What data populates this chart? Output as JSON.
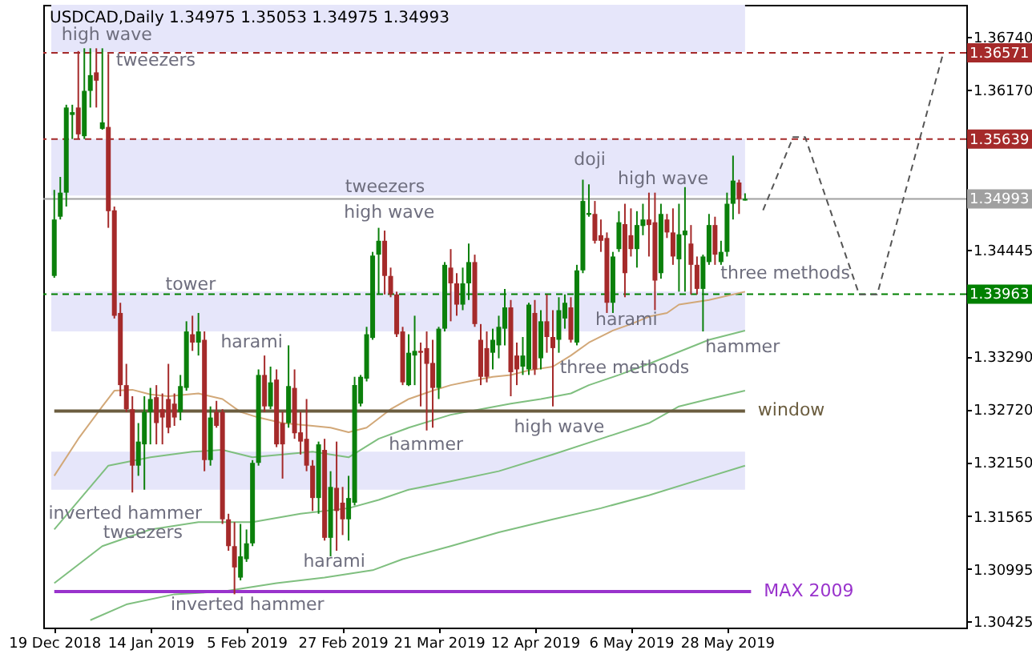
{
  "chart_data": {
    "type": "candlestick",
    "title": "USDCAD,Daily  1.34975 1.35053 1.34975 1.34993",
    "categories": [
      "19 Dec 2018",
      null,
      null,
      null,
      null,
      null,
      null,
      null,
      null,
      null,
      null,
      null,
      null,
      null,
      null,
      null,
      "14 Jan 2019",
      null,
      null,
      null,
      null,
      null,
      null,
      null,
      null,
      null,
      null,
      null,
      null,
      null,
      null,
      null,
      "5 Feb 2019",
      null,
      null,
      null,
      null,
      null,
      null,
      null,
      null,
      null,
      null,
      null,
      null,
      null,
      null,
      null,
      "27 Feb 2019",
      null,
      null,
      null,
      null,
      null,
      null,
      null,
      null,
      null,
      null,
      null,
      null,
      null,
      null,
      null,
      "21 Mar 2019",
      null,
      null,
      null,
      null,
      null,
      null,
      null,
      null,
      null,
      null,
      null,
      null,
      null,
      null,
      null,
      "12 Apr 2019",
      null,
      null,
      null,
      null,
      null,
      null,
      null,
      null,
      null,
      null,
      null,
      null,
      null,
      null,
      null,
      "6 May 2019",
      null,
      null,
      null,
      null,
      null,
      null,
      null,
      null,
      null,
      null,
      null,
      null,
      null,
      null,
      null,
      "28 May 2019",
      null,
      null,
      null,
      null,
      null,
      null,
      null,
      null,
      null,
      null,
      null,
      null,
      null,
      null,
      null,
      null,
      null,
      null,
      null,
      null,
      null,
      null,
      null,
      null,
      null,
      null,
      null,
      null,
      null,
      null,
      null,
      null,
      null,
      null,
      null,
      null,
      null,
      null
    ],
    "colors": [
      "#0b800b",
      "#0b800b",
      "#0b800b",
      "#0b800b",
      "#a52a2a",
      "#0b800b",
      "#0b800b",
      "#a52a2a",
      "#0b800b",
      "#a52a2a",
      "#a52a2a",
      "#a52a2a",
      "#a52a2a",
      "#a52a2a",
      "#0b800b",
      "#0b800b",
      "#0b800b",
      "#a52a2a",
      "#a52a2a",
      "#a52a2a",
      "#a52a2a",
      "#0b800b",
      "#0b800b",
      "#a52a2a",
      "#0b800b",
      "#a52a2a",
      "#0b800b",
      "#a52a2a",
      "#a52a2a",
      "#a52a2a",
      "#a52a2a",
      "#0b800b",
      "#0b800b",
      "#0b800b",
      "#0b800b",
      "#a52a2a",
      "#0b800b",
      "#a52a2a",
      "#a52a2a",
      "#0b800b",
      "#a52a2a",
      "#a52a2a",
      "#a52a2a",
      "#a52a2a",
      "#0b800b",
      "#a52a2a",
      "#0b800b",
      "#a52a2a",
      "#a52a2a",
      "#0b800b",
      "#0b800b",
      "#0b800b",
      "#0b800b",
      "#0b800b",
      "#0b800b",
      "#a52a2a",
      "#a52a2a",
      "#a52a2a",
      "#a52a2a",
      "#0b800b",
      "#0b800b",
      "#a52a2a",
      "#a52a2a",
      "#a52a2a",
      "#0b800b",
      "#0b800b",
      "#a52a2a",
      "#a52a2a",
      "#0b800b",
      "#0b800b",
      "#a52a2a",
      "#a52a2a",
      "#a52a2a",
      "#0b800b",
      "#0b800b",
      "#0b800b",
      "#a52a2a",
      "#a52a2a",
      "#0b800b",
      "#0b800b",
      "#a52a2a",
      "#0b800b",
      "#a52a2a",
      "#a52a2a",
      "#0b800b",
      "#0b800b",
      "#a52a2a",
      "#0b800b",
      "#0b800b",
      "#0b800b",
      "#a52a2a",
      "#a52a2a",
      "#a52a2a",
      "#0b800b",
      "#0b800b",
      "#a52a2a",
      "#a52a2a",
      "#0b800b",
      "#0b800b",
      "#a52a2a",
      "#a52a2a",
      "#0b800b",
      "#a52a2a",
      "#a52a2a",
      "#0b800b",
      "#0b800b",
      "#a52a2a",
      "#a52a2a",
      "#0b800b",
      "#0b800b",
      "#a52a2a",
      "#0b800b",
      "#0b800b",
      "#0b800b",
      "#a52a2a",
      "#0b800b",
      null,
      null,
      null,
      null,
      null,
      null,
      null,
      null,
      null,
      null,
      null,
      null,
      null,
      null,
      null,
      null,
      null,
      null,
      null,
      null,
      null,
      null,
      null,
      null,
      null,
      null,
      null,
      null,
      null,
      null,
      null,
      null,
      null,
      null,
      null
    ],
    "ylim": [
      1.3036,
      1.3709
    ],
    "yticks": [
      {
        "value": 1.3674,
        "label": "1.36740"
      },
      {
        "value": 1.3617,
        "label": "1.36170"
      },
      1.34445,
      {
        "value": 1.3329,
        "label": "1.33290"
      },
      {
        "value": 1.3272,
        "label": "1.32720"
      },
      {
        "value": 1.3215,
        "label": "1.32150"
      },
      1.31565,
      1.30995,
      1.30425
    ],
    "grid": false,
    "ohlc": [
      [
        1.3416,
        1.3509,
        1.3414,
        1.3477
      ],
      [
        1.348,
        1.3523,
        1.3477,
        1.3506
      ],
      [
        1.3506,
        1.3601,
        1.3491,
        1.3598
      ],
      [
        1.359,
        1.3601,
        1.3564,
        1.3593
      ],
      [
        1.3598,
        1.3659,
        1.3564,
        1.3569
      ],
      [
        1.3567,
        1.3662,
        1.3564,
        1.3616
      ],
      [
        1.3616,
        1.3662,
        1.3598,
        1.3633
      ],
      [
        1.3636,
        1.3662,
        1.3598,
        1.3627
      ],
      [
        1.3575,
        1.3662,
        1.3574,
        1.3582
      ],
      [
        1.3577,
        1.3656,
        1.3468,
        1.3486
      ],
      [
        1.3487,
        1.3491,
        1.337,
        1.3373
      ],
      [
        1.3376,
        1.3387,
        1.3286,
        1.3298
      ],
      [
        1.3298,
        1.3321,
        1.3269,
        1.3272
      ],
      [
        1.3272,
        1.3286,
        1.3182,
        1.3211
      ],
      [
        1.3211,
        1.3257,
        1.32,
        1.3237
      ],
      [
        1.3234,
        1.3286,
        1.3185,
        1.3269
      ],
      [
        1.3269,
        1.3295,
        1.3234,
        1.3283
      ],
      [
        1.3285,
        1.3298,
        1.3234,
        1.3257
      ],
      [
        1.3272,
        1.3289,
        1.3234,
        1.3263
      ],
      [
        1.3283,
        1.3321,
        1.3246,
        1.3252
      ],
      [
        1.3278,
        1.3289,
        1.3254,
        1.3263
      ],
      [
        1.3269,
        1.3309,
        1.326,
        1.3297
      ],
      [
        1.3295,
        1.3367,
        1.3292,
        1.3356
      ],
      [
        1.3353,
        1.3373,
        1.3335,
        1.3344
      ],
      [
        1.3344,
        1.3376,
        1.333,
        1.3356
      ],
      [
        1.3347,
        1.3356,
        1.3205,
        1.3217
      ],
      [
        1.3217,
        1.3275,
        1.3211,
        1.3263
      ],
      [
        1.3269,
        1.3281,
        1.3252,
        1.3254
      ],
      [
        1.3269,
        1.3272,
        1.3148,
        1.3153
      ],
      [
        1.3153,
        1.3159,
        1.3119,
        1.3124
      ],
      [
        1.3124,
        1.315,
        1.3072,
        1.3101
      ],
      [
        1.309,
        1.3148,
        1.3087,
        1.3113
      ],
      [
        1.311,
        1.3142,
        1.3107,
        1.3127
      ],
      [
        1.3127,
        1.3217,
        1.3124,
        1.3214
      ],
      [
        1.3214,
        1.3315,
        1.3211,
        1.3309
      ],
      [
        1.3309,
        1.333,
        1.3269,
        1.3275
      ],
      [
        1.3275,
        1.3318,
        1.3272,
        1.3301
      ],
      [
        1.3304,
        1.3315,
        1.3231,
        1.3234
      ],
      [
        1.3257,
        1.3269,
        1.3197,
        1.3234
      ],
      [
        1.3257,
        1.3341,
        1.3252,
        1.3297
      ],
      [
        1.3295,
        1.3315,
        1.324,
        1.3246
      ],
      [
        1.3247,
        1.3269,
        1.3223,
        1.3237
      ],
      [
        1.324,
        1.3283,
        1.3205,
        1.3211
      ],
      [
        1.3211,
        1.3217,
        1.3162,
        1.3176
      ],
      [
        1.3176,
        1.3237,
        1.3159,
        1.3234
      ],
      [
        1.3228,
        1.324,
        1.313,
        1.3133
      ],
      [
        1.3133,
        1.3205,
        1.3113,
        1.3188
      ],
      [
        1.3187,
        1.3237,
        1.3119,
        1.3162
      ],
      [
        1.3171,
        1.3188,
        1.3136,
        1.3153
      ],
      [
        1.3153,
        1.32,
        1.313,
        1.3176
      ],
      [
        1.3171,
        1.3307,
        1.3168,
        1.3298
      ],
      [
        1.3278,
        1.3309,
        1.3275,
        1.3307
      ],
      [
        1.3305,
        1.3361,
        1.3302,
        1.3353
      ],
      [
        1.3349,
        1.3442,
        1.3347,
        1.3438
      ],
      [
        1.3439,
        1.3468,
        1.3396,
        1.3454
      ],
      [
        1.3454,
        1.3465,
        1.3396,
        1.3416
      ],
      [
        1.3416,
        1.3425,
        1.3393,
        1.3396
      ],
      [
        1.3396,
        1.3399,
        1.335,
        1.3353
      ],
      [
        1.3356,
        1.3361,
        1.3298,
        1.3301
      ],
      [
        1.3298,
        1.3353,
        1.3297,
        1.3333
      ],
      [
        1.333,
        1.3373,
        1.3298,
        1.3335
      ],
      [
        1.3335,
        1.3344,
        1.3275,
        1.3333
      ],
      [
        1.3338,
        1.3356,
        1.3249,
        1.3321
      ],
      [
        1.3322,
        1.3347,
        1.3252,
        1.3295
      ],
      [
        1.3295,
        1.3361,
        1.3283,
        1.3359
      ],
      [
        1.3359,
        1.3431,
        1.3356,
        1.3428
      ],
      [
        1.3425,
        1.3445,
        1.3367,
        1.3408
      ],
      [
        1.3408,
        1.3419,
        1.3373,
        1.3385
      ],
      [
        1.3385,
        1.3425,
        1.3379,
        1.3408
      ],
      [
        1.3408,
        1.3451,
        1.339,
        1.3431
      ],
      [
        1.3431,
        1.3439,
        1.3361,
        1.3364
      ],
      [
        1.3347,
        1.3364,
        1.3298,
        1.3307
      ],
      [
        1.3338,
        1.3356,
        1.3301,
        1.3307
      ],
      [
        1.3333,
        1.3359,
        1.3315,
        1.3347
      ],
      [
        1.3341,
        1.3373,
        1.3327,
        1.3361
      ],
      [
        1.3359,
        1.3402,
        1.3341,
        1.3382
      ],
      [
        1.3382,
        1.339,
        1.3286,
        1.3312
      ],
      [
        1.333,
        1.3344,
        1.3298,
        1.3315
      ],
      [
        1.3318,
        1.335,
        1.3309,
        1.333
      ],
      [
        1.3315,
        1.3387,
        1.3309,
        1.3385
      ],
      [
        1.3376,
        1.339,
        1.3309,
        1.3315
      ],
      [
        1.3327,
        1.3379,
        1.3315,
        1.3367
      ],
      [
        1.3367,
        1.3396,
        1.3333,
        1.335
      ],
      [
        1.335,
        1.3379,
        1.3275,
        1.3338
      ],
      [
        1.3347,
        1.3393,
        1.3333,
        1.3379
      ],
      [
        1.337,
        1.3396,
        1.3359,
        1.3387
      ],
      [
        1.3382,
        1.3393,
        1.3344,
        1.3347
      ],
      [
        1.3344,
        1.3428,
        1.3341,
        1.3422
      ],
      [
        1.3422,
        1.352,
        1.3419,
        1.3497
      ],
      [
        1.3482,
        1.3515,
        1.348,
        1.3484
      ],
      [
        1.3483,
        1.3497,
        1.3451,
        1.3454
      ],
      [
        1.346,
        1.3477,
        1.3442,
        1.3454
      ],
      [
        1.3457,
        1.3463,
        1.3376,
        1.3387
      ],
      [
        1.3387,
        1.3442,
        1.3376,
        1.3437
      ],
      [
        1.3445,
        1.3486,
        1.3442,
        1.3474
      ],
      [
        1.3472,
        1.3494,
        1.3393,
        1.3419
      ],
      [
        1.346,
        1.3489,
        1.3437,
        1.3445
      ],
      [
        1.3445,
        1.3486,
        1.3425,
        1.3471
      ],
      [
        1.347,
        1.3494,
        1.346,
        1.3477
      ],
      [
        1.3477,
        1.3506,
        1.3437,
        1.3471
      ],
      [
        1.3474,
        1.3506,
        1.3379,
        1.3411
      ],
      [
        1.3419,
        1.3494,
        1.3413,
        1.3483
      ],
      [
        1.3477,
        1.3483,
        1.3457,
        1.3463
      ],
      [
        1.3463,
        1.3489,
        1.3428,
        1.3437
      ],
      [
        1.3434,
        1.3494,
        1.3399,
        1.3461
      ],
      [
        1.346,
        1.3512,
        1.3399,
        1.3465
      ],
      [
        1.3451,
        1.3471,
        1.3396,
        1.3428
      ],
      [
        1.3428,
        1.3437,
        1.3396,
        1.3402
      ],
      [
        1.3402,
        1.3439,
        1.3356,
        1.3437
      ],
      [
        1.3431,
        1.3483,
        1.3428,
        1.3471
      ],
      [
        1.3471,
        1.348,
        1.3428,
        1.3439
      ],
      [
        1.3431,
        1.3454,
        1.3428,
        1.3442
      ],
      [
        1.3442,
        1.3506,
        1.3437,
        1.3494
      ],
      [
        1.3494,
        1.3546,
        1.3477,
        1.3519
      ],
      [
        1.3517,
        1.352,
        1.3483,
        1.3499
      ],
      [
        1.34975,
        1.35053,
        1.34975,
        1.34993
      ],
      null,
      null,
      null,
      null,
      null,
      null,
      null,
      null,
      null,
      null,
      null,
      null,
      null,
      null,
      null,
      null,
      null,
      null,
      null,
      null,
      null,
      null,
      null,
      null,
      null,
      null,
      null,
      null,
      null,
      null,
      null,
      null,
      null,
      null,
      null
    ],
    "series": [
      {
        "type": "line",
        "color": "#d2a878",
        "values": [
          1.32,
          null,
          null,
          null,
          1.324,
          null,
          null,
          null,
          1.3275,
          null,
          1.3292,
          null,
          null,
          1.3293,
          null,
          null,
          1.3288,
          null,
          null,
          1.3286,
          null,
          null,
          null,
          null,
          1.3289,
          null,
          null,
          null,
          1.3283,
          null,
          null,
          1.3269,
          null,
          null,
          1.3263,
          null,
          null,
          null,
          1.3257,
          null,
          null,
          null,
          null,
          1.3254,
          null,
          null,
          1.3252,
          null,
          null,
          1.3247,
          null,
          null,
          1.3252,
          null,
          null,
          null,
          1.3272,
          null,
          null,
          1.3283,
          null,
          null,
          null,
          1.3292,
          null,
          null,
          1.3298,
          null,
          null,
          1.3302,
          null,
          null,
          null,
          1.3307,
          null,
          null,
          1.3309,
          null,
          null,
          1.3314,
          null,
          null,
          null,
          1.3318,
          null,
          null,
          1.333,
          null,
          null,
          1.3344,
          null,
          null,
          null,
          1.3357,
          null,
          null,
          1.3364,
          null,
          null,
          1.3372,
          null,
          null,
          1.3376,
          null,
          1.3385,
          null,
          null,
          null,
          null,
          1.339,
          null,
          null,
          null,
          null,
          null,
          1.3399,
          null,
          null,
          null,
          null,
          null,
          null,
          null,
          null,
          null,
          null,
          null,
          null,
          null,
          null,
          null,
          null,
          null,
          null,
          null,
          null,
          null,
          null,
          null,
          null,
          null,
          null,
          null,
          null,
          null,
          null,
          null,
          null,
          null,
          null,
          null
        ]
      },
      {
        "type": "line",
        "color": "#7fbf7f",
        "values": [
          1.3142,
          null,
          null,
          null,
          null,
          null,
          null,
          null,
          null,
          1.3211,
          null,
          null,
          null,
          null,
          null,
          null,
          1.322,
          null,
          null,
          null,
          null,
          null,
          null,
          1.3226,
          null,
          null,
          null,
          null,
          1.3228,
          null,
          null,
          null,
          null,
          1.322,
          null,
          null,
          null,
          null,
          1.3223,
          null,
          null,
          null,
          null,
          1.3226,
          null,
          null,
          null,
          null,
          null,
          1.322,
          null,
          null,
          null,
          null,
          1.324,
          null,
          null,
          null,
          null,
          1.3252,
          null,
          null,
          null,
          null,
          null,
          null,
          1.3266,
          null,
          null,
          null,
          null,
          1.3272,
          null,
          null,
          null,
          null,
          1.3278,
          null,
          null,
          null,
          null,
          1.3283,
          null,
          null,
          null,
          null,
          1.3289,
          null,
          null,
          1.3298,
          null,
          null,
          null,
          null,
          1.3309,
          null,
          null,
          null,
          null,
          1.3321,
          null,
          null,
          null,
          null,
          1.3334,
          null,
          null,
          null,
          null,
          1.3347,
          null,
          null,
          null,
          null,
          null,
          1.3357,
          null,
          null,
          null,
          null,
          null,
          null,
          null,
          null,
          null,
          null,
          null,
          null,
          null,
          null,
          null,
          null,
          null,
          null,
          null,
          null,
          null,
          null,
          null,
          null,
          null,
          null,
          null,
          null,
          null,
          null,
          null,
          null,
          null,
          null,
          null
        ]
      },
      {
        "type": "line",
        "color": "#7fbf7f",
        "values": [
          1.3084,
          null,
          null,
          null,
          null,
          null,
          null,
          null,
          1.3124,
          null,
          null,
          null,
          null,
          null,
          null,
          null,
          1.3142,
          null,
          null,
          null,
          null,
          null,
          null,
          null,
          1.315,
          null,
          null,
          null,
          null,
          null,
          null,
          null,
          null,
          1.315,
          null,
          null,
          null,
          null,
          null,
          null,
          null,
          1.3159,
          null,
          null,
          null,
          null,
          null,
          null,
          null,
          1.3165,
          null,
          null,
          null,
          null,
          1.3174,
          null,
          null,
          null,
          null,
          1.3185,
          null,
          null,
          null,
          null,
          null,
          null,
          1.3194,
          null,
          null,
          null,
          null,
          null,
          null,
          null,
          1.3205,
          null,
          null,
          null,
          null,
          null,
          null,
          null,
          null,
          1.3223,
          null,
          null,
          null,
          null,
          null,
          null,
          null,
          1.324,
          null,
          null,
          null,
          null,
          null,
          null,
          null,
          1.3257,
          null,
          null,
          null,
          null,
          1.3275,
          null,
          null,
          null,
          null,
          1.3283,
          null,
          null,
          null,
          null,
          null,
          1.3292,
          null,
          null,
          null,
          null,
          null,
          null,
          null,
          null,
          null,
          null,
          null,
          null,
          null,
          null,
          null,
          null,
          null,
          null,
          null,
          null,
          null,
          null,
          null,
          null,
          null,
          null,
          null,
          null,
          null,
          null,
          null,
          null,
          null,
          null,
          null
        ]
      },
      {
        "type": "line",
        "color": "#7fbf7f",
        "values": [
          null,
          null,
          null,
          null,
          null,
          null,
          1.3044,
          null,
          null,
          null,
          null,
          null,
          1.3061,
          null,
          null,
          null,
          null,
          null,
          null,
          null,
          1.3072,
          null,
          null,
          null,
          null,
          null,
          null,
          null,
          1.3075,
          null,
          null,
          null,
          null,
          null,
          null,
          null,
          null,
          1.3084,
          null,
          null,
          null,
          null,
          null,
          null,
          null,
          1.309,
          null,
          null,
          null,
          null,
          null,
          null,
          null,
          1.3098,
          null,
          null,
          null,
          null,
          1.311,
          null,
          null,
          null,
          null,
          null,
          null,
          null,
          1.3124,
          null,
          null,
          null,
          null,
          null,
          null,
          null,
          1.3139,
          null,
          null,
          null,
          null,
          null,
          null,
          null,
          null,
          1.3153,
          null,
          null,
          null,
          null,
          null,
          null,
          null,
          1.3165,
          null,
          null,
          null,
          null,
          null,
          null,
          null,
          1.3179,
          null,
          null,
          null,
          null,
          null,
          null,
          null,
          null,
          1.3197,
          null,
          null,
          null,
          null,
          null,
          null,
          1.3211,
          null,
          null,
          null,
          null,
          null,
          null,
          null,
          null,
          null,
          null,
          null,
          null,
          null,
          null,
          null,
          null,
          null,
          null,
          null,
          null,
          null,
          null,
          null,
          null,
          null,
          null,
          null,
          null,
          null,
          null,
          null,
          null,
          null,
          null,
          null
        ]
      },
      {
        "type": "line",
        "name": "window",
        "color": "#6b5d3f",
        "values": [
          1.327,
          1.327,
          1.327,
          1.327,
          1.327,
          1.327,
          1.327,
          1.327,
          1.327,
          1.327,
          1.327,
          1.327,
          1.327,
          1.327,
          1.327,
          1.327,
          1.327,
          1.327,
          1.327,
          1.327,
          1.327,
          1.327,
          1.327,
          1.327,
          1.327,
          1.327,
          1.327,
          1.327,
          1.327,
          1.327,
          1.327,
          1.327,
          1.327,
          1.327,
          1.327,
          1.327,
          1.327,
          1.327,
          1.327,
          1.327,
          1.327,
          1.327,
          1.327,
          1.327,
          1.327,
          1.327,
          1.327,
          1.327,
          1.327,
          1.327,
          1.327,
          1.327,
          1.327,
          1.327,
          1.327,
          1.327,
          1.327,
          1.327,
          1.327,
          1.327,
          1.327,
          1.327,
          1.327,
          1.327,
          1.327,
          1.327,
          1.327,
          1.327,
          1.327,
          1.327,
          1.327,
          1.327,
          1.327,
          1.327,
          1.327,
          1.327,
          1.327,
          1.327,
          1.327,
          1.327,
          1.327,
          1.327,
          1.327,
          1.327,
          1.327,
          1.327,
          1.327,
          1.327,
          1.327,
          1.327,
          1.327,
          1.327,
          1.327,
          1.327,
          1.327,
          1.327,
          1.327,
          1.327,
          1.327,
          1.327,
          1.327,
          1.327,
          1.327,
          1.327,
          1.327,
          1.327,
          1.327,
          1.327,
          1.327,
          1.327,
          1.327,
          1.327,
          1.327,
          1.327,
          1.327,
          1.327,
          null,
          null,
          null,
          null,
          null,
          null,
          null,
          null,
          null,
          null,
          null,
          null,
          null,
          null,
          null,
          null,
          null,
          null,
          null,
          null,
          null,
          null,
          null,
          null,
          null,
          null,
          null,
          null,
          null,
          null,
          null,
          null,
          null,
          null,
          null
        ]
      },
      {
        "type": "line",
        "name": "MAX 2009",
        "color": "#9933cc",
        "values": [
          1.3075,
          1.3075,
          1.3075,
          1.3075,
          1.3075,
          1.3075,
          1.3075,
          1.3075,
          1.3075,
          1.3075,
          1.3075,
          1.3075,
          1.3075,
          1.3075,
          1.3075,
          1.3075,
          1.3075,
          1.3075,
          1.3075,
          1.3075,
          1.3075,
          1.3075,
          1.3075,
          1.3075,
          1.3075,
          1.3075,
          1.3075,
          1.3075,
          1.3075,
          1.3075,
          1.3075,
          1.3075,
          1.3075,
          1.3075,
          1.3075,
          1.3075,
          1.3075,
          1.3075,
          1.3075,
          1.3075,
          1.3075,
          1.3075,
          1.3075,
          1.3075,
          1.3075,
          1.3075,
          1.3075,
          1.3075,
          1.3075,
          1.3075,
          1.3075,
          1.3075,
          1.3075,
          1.3075,
          1.3075,
          1.3075,
          1.3075,
          1.3075,
          1.3075,
          1.3075,
          1.3075,
          1.3075,
          1.3075,
          1.3075,
          1.3075,
          1.3075,
          1.3075,
          1.3075,
          1.3075,
          1.3075,
          1.3075,
          1.3075,
          1.3075,
          1.3075,
          1.3075,
          1.3075,
          1.3075,
          1.3075,
          1.3075,
          1.3075,
          1.3075,
          1.3075,
          1.3075,
          1.3075,
          1.3075,
          1.3075,
          1.3075,
          1.3075,
          1.3075,
          1.3075,
          1.3075,
          1.3075,
          1.3075,
          1.3075,
          1.3075,
          1.3075,
          1.3075,
          1.3075,
          1.3075,
          1.3075,
          1.3075,
          1.3075,
          1.3075,
          1.3075,
          1.3075,
          1.3075,
          1.3075,
          1.3075,
          1.3075,
          1.3075,
          1.3075,
          1.3075,
          1.3075,
          1.3075,
          1.3075,
          1.3075,
          1.3075,
          null,
          null,
          null,
          null,
          null,
          null,
          null,
          null,
          null,
          null,
          null,
          null,
          null,
          null,
          null,
          null,
          null,
          null,
          null,
          null,
          null,
          null,
          null,
          null,
          null,
          null,
          null,
          null,
          null,
          null,
          null,
          null,
          null,
          null
        ]
      },
      {
        "type": "line",
        "color": "#555555",
        "line_style": "dashed",
        "values": [
          null,
          null,
          null,
          null,
          null,
          null,
          null,
          null,
          null,
          null,
          null,
          null,
          null,
          null,
          null,
          null,
          null,
          null,
          null,
          null,
          null,
          null,
          null,
          null,
          null,
          null,
          null,
          null,
          null,
          null,
          null,
          null,
          null,
          null,
          null,
          null,
          null,
          null,
          null,
          null,
          null,
          null,
          null,
          null,
          null,
          null,
          null,
          null,
          null,
          null,
          null,
          null,
          null,
          null,
          null,
          null,
          null,
          null,
          null,
          null,
          null,
          null,
          null,
          null,
          null,
          null,
          null,
          null,
          null,
          null,
          null,
          null,
          null,
          null,
          null,
          null,
          null,
          null,
          null,
          null,
          null,
          null,
          null,
          null,
          null,
          null,
          null,
          null,
          null,
          null,
          null,
          null,
          null,
          null,
          null,
          null,
          null,
          null,
          null,
          null,
          null,
          null,
          null,
          null,
          null,
          null,
          null,
          null,
          null,
          null,
          null,
          null,
          null,
          null,
          null,
          null,
          null,
          null,
          1.3487,
          null,
          null,
          null,
          null,
          1.3566,
          null,
          1.3566,
          null,
          null,
          null,
          null,
          null,
          null,
          null,
          null,
          1.3396,
          null,
          null,
          1.3396,
          null,
          null,
          null,
          null,
          null,
          null,
          null,
          null,
          null,
          null,
          1.3657,
          null,
          null
        ]
      }
    ],
    "ref_lines": [
      {
        "axis": "y",
        "value": 1.36571,
        "label": "1.36571",
        "color": "#a52a2a",
        "line_style": "dashed"
      },
      {
        "axis": "y",
        "value": 1.35639,
        "label": "1.35639",
        "color": "#a52a2a",
        "line_style": "dashed"
      },
      {
        "axis": "y",
        "value": 1.34993,
        "label": "1.34993",
        "color": "#a0a0a0",
        "line_style": "solid"
      },
      {
        "axis": "y",
        "value": 1.33963,
        "label": "1.33963",
        "color": "#008000",
        "line_style": "dashed"
      }
    ],
    "bands": [
      {
        "axis": "y",
        "from": 1.3658,
        "to": 1.3709,
        "color": "#e6e6fa"
      },
      {
        "axis": "y",
        "from": 1.3503,
        "to": 1.3564,
        "color": "#e6e6fa"
      },
      {
        "axis": "y",
        "from": 1.3356,
        "to": 1.3399,
        "color": "#e6e6fa"
      },
      {
        "axis": "y",
        "from": 1.3185,
        "to": 1.3226,
        "color": "#e6e6fa"
      }
    ],
    "annotations": [
      "high wave",
      "tweezers",
      "tweezers",
      "high wave",
      "tower",
      "harami",
      "inverted hammer",
      "tweezers",
      "harami",
      "inverted hammer",
      "hammer",
      "high wave",
      "three methods",
      "harami",
      "doji",
      "high wave",
      "three methods",
      "hammer"
    ]
  }
}
